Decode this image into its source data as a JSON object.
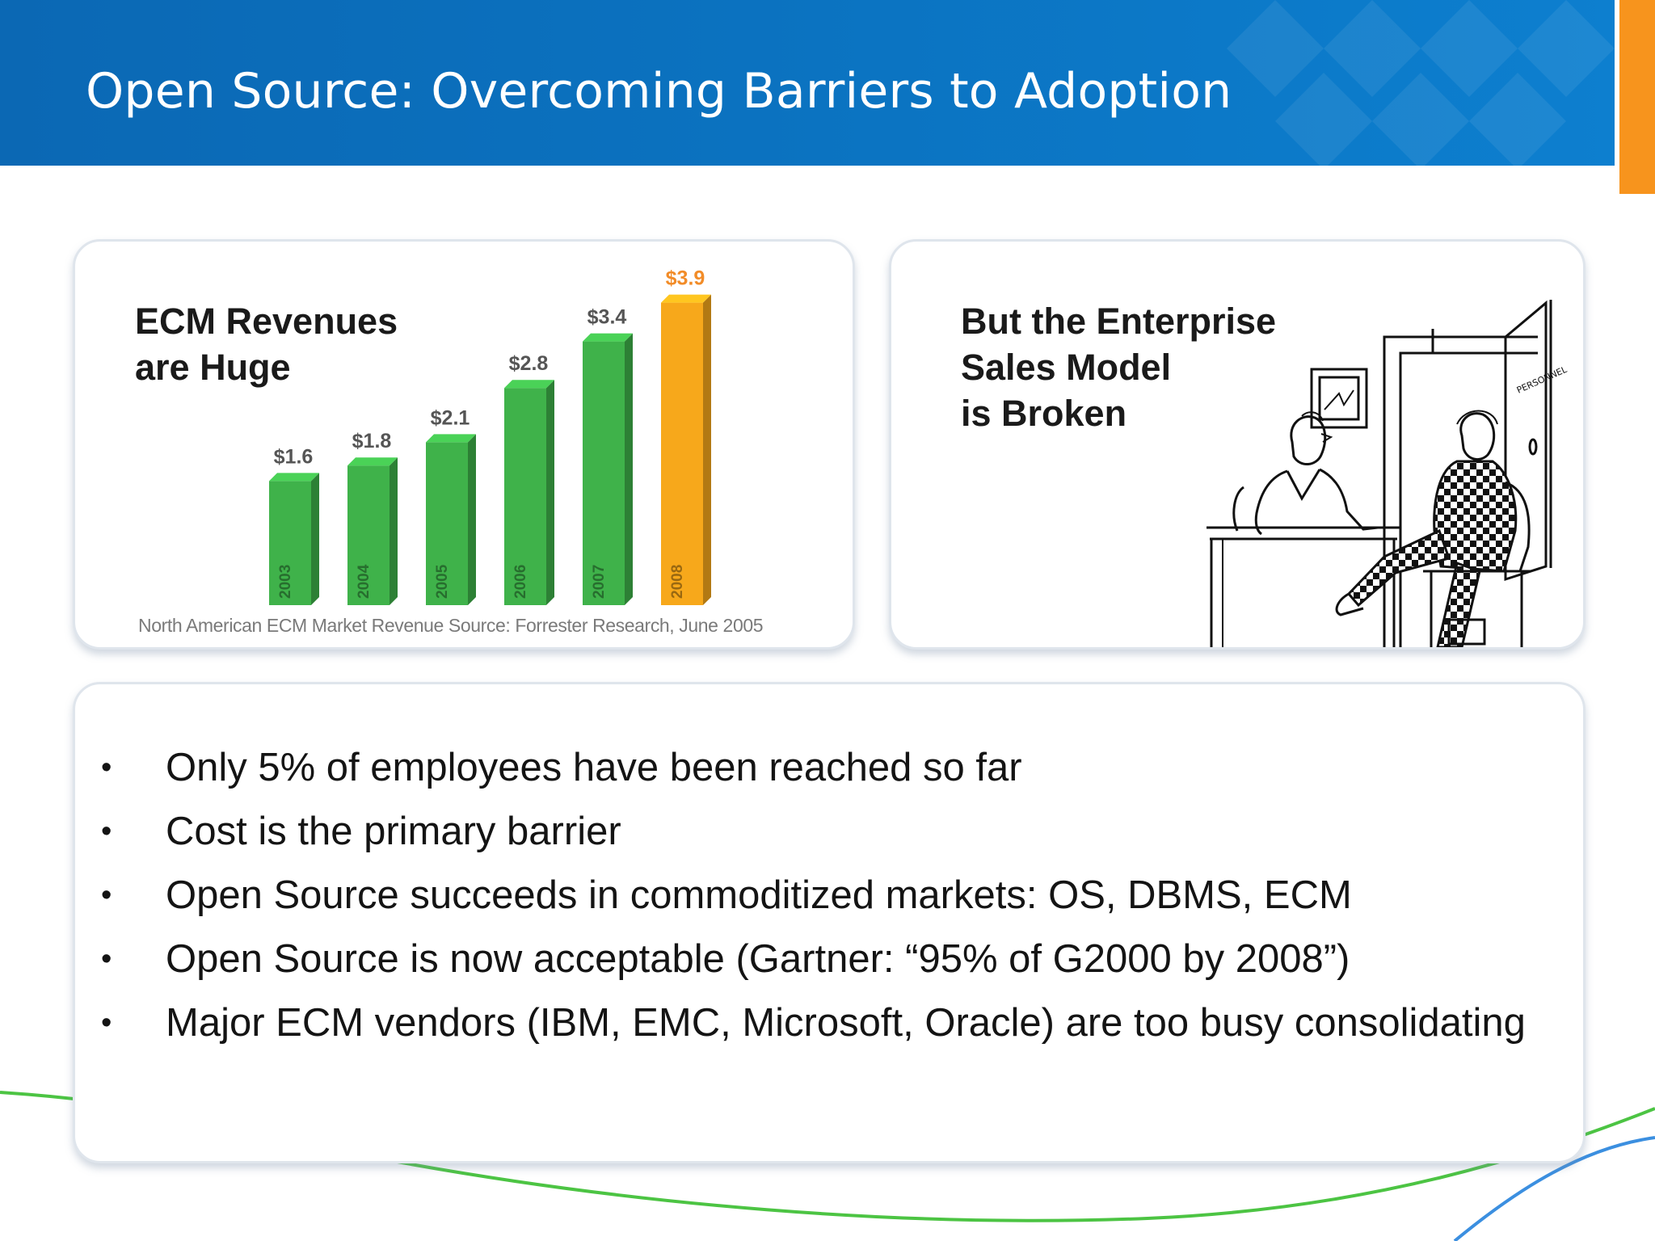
{
  "slide": {
    "title": "Open Source: Overcoming Barriers to Adoption",
    "colors": {
      "header_blue": "#0b74c2",
      "accent_orange": "#f7941d",
      "swoosh_green": "#4cc443",
      "swoosh_blue": "#3b8fe0"
    }
  },
  "chart_panel": {
    "heading_line1": "ECM Revenues",
    "heading_line2": "are Huge",
    "source": "North American ECM Market Revenue Source: Forrester Research, June 2005"
  },
  "chart_data": {
    "type": "bar",
    "categories": [
      "2003",
      "2004",
      "2005",
      "2006",
      "2007",
      "2008"
    ],
    "values": [
      1.6,
      1.8,
      2.1,
      2.8,
      3.4,
      3.9
    ],
    "value_labels": [
      "$1.6",
      "$1.8",
      "$2.1",
      "$2.8",
      "$3.4",
      "$3.9"
    ],
    "bar_colors": [
      "#3fb24a",
      "#3fb24a",
      "#3fb24a",
      "#3fb24a",
      "#3fb24a",
      "#f7a81b"
    ],
    "highlight_category": "2008",
    "title": "",
    "xlabel": "",
    "ylabel": "",
    "grid": false
  },
  "cartoon_panel": {
    "heading_line1": "But the Enterprise",
    "heading_line2": "Sales Model",
    "heading_line3": "is Broken",
    "door_sign": "PERSONNEL"
  },
  "bullets": [
    "Only 5% of employees have been reached so far",
    "Cost is the primary barrier",
    "Open Source succeeds in commoditized markets: OS, DBMS, ECM",
    "Open Source is now acceptable (Gartner: “95% of G2000 by 2008”)",
    "Major ECM vendors (IBM, EMC, Microsoft, Oracle) are too busy consolidating"
  ],
  "bullet_symbol": "•"
}
